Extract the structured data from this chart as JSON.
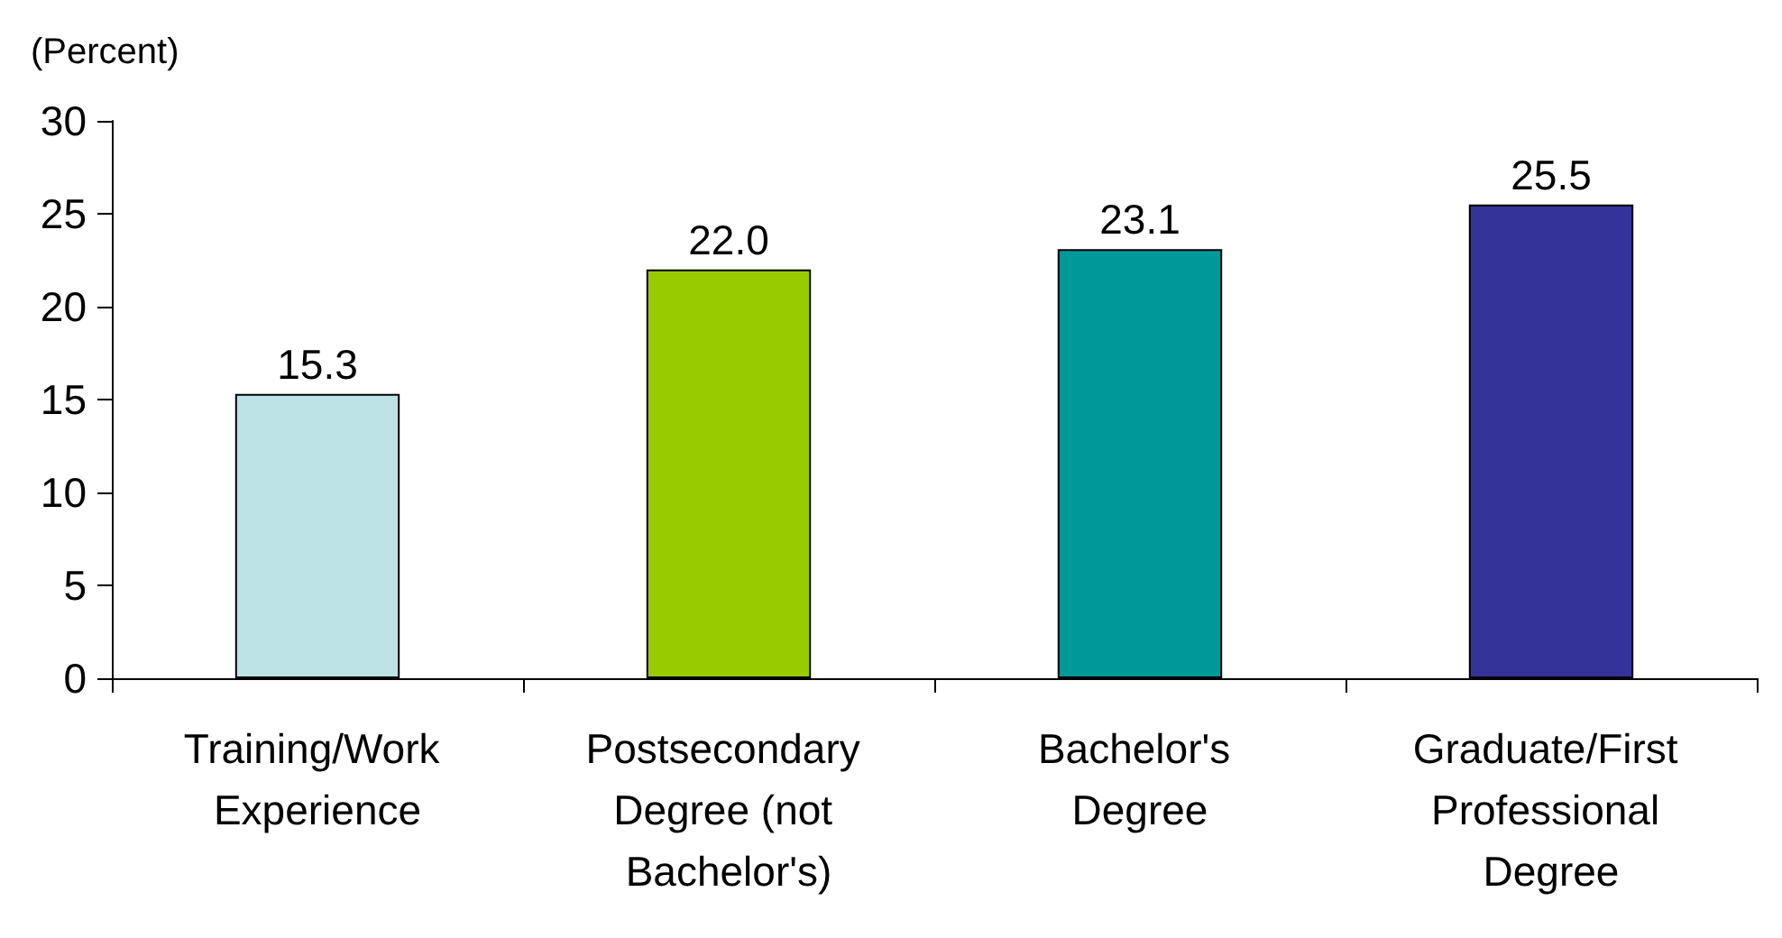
{
  "chart_data": {
    "type": "bar",
    "ylabel": "(Percent)",
    "categories": [
      "Training/Work Experience",
      "Postsecondary Degree (not Bachelor's)",
      "Bachelor's Degree",
      "Graduate/First Professional Degree"
    ],
    "values": [
      15.3,
      22.0,
      23.1,
      25.5
    ],
    "colors": [
      "#bde3e6",
      "#99cc00",
      "#009999",
      "#333399"
    ],
    "ylim": [
      0,
      30
    ],
    "yticks": [
      0,
      5,
      10,
      15,
      20,
      25,
      30
    ],
    "value_labels": [
      "15.3",
      "22.0",
      "23.1",
      "25.5"
    ]
  }
}
